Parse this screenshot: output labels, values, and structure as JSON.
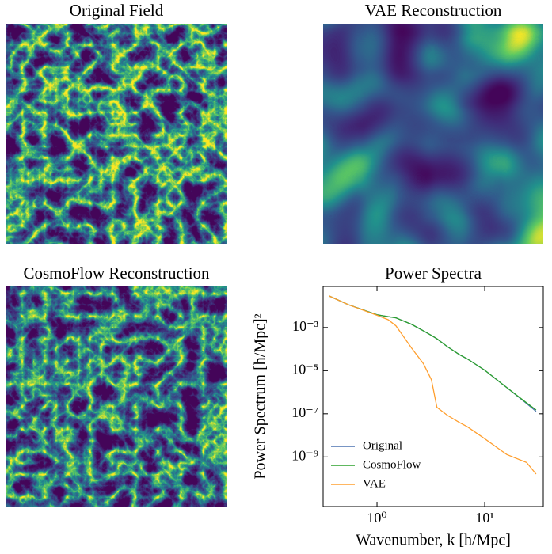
{
  "chart_data": [
    {
      "type": "image",
      "title": "Original Field",
      "style": "filaments"
    },
    {
      "type": "image",
      "title": "VAE Reconstruction",
      "style": "smooth"
    },
    {
      "type": "image",
      "title": "CosmoFlow Reconstruction",
      "style": "filaments"
    },
    {
      "type": "line",
      "title": "Power Spectra",
      "x_label": "Wavenumber, k [h/Mpc]",
      "y_label": "Power Spectrum [h/Mpc]²",
      "x_scale": "log",
      "y_scale": "log",
      "x": [
        0.36,
        0.54,
        1,
        1.27,
        1.5,
        2.1,
        2.7,
        3.2,
        3.6,
        4.5,
        5.8,
        6.9,
        10,
        16,
        24.5,
        30
      ],
      "series": [
        {
          "name": "Original",
          "color": "#4c72b0",
          "values": [
            0.029,
            0.0115,
            0.0039,
            0.0032,
            0.0028,
            0.0014,
            0.0007,
            0.00043,
            0.0003,
            0.00013,
            5.6e-05,
            3.5e-05,
            1.05e-05,
            1.65e-06,
            3e-07,
            1.3e-07
          ]
        },
        {
          "name": "CosmoFlow",
          "color": "#2ca02c",
          "values": [
            0.029,
            0.0115,
            0.0039,
            0.0032,
            0.0028,
            0.0014,
            0.0007,
            0.00043,
            0.0003,
            0.00013,
            5.6e-05,
            3.5e-05,
            1.05e-05,
            1.65e-06,
            3.2e-07,
            1.5e-07
          ]
        },
        {
          "name": "VAE",
          "color": "#ff9f2f",
          "values": [
            0.029,
            0.0115,
            0.0037,
            0.0023,
            0.0012,
            0.00011,
            2.1e-05,
            3.8e-06,
            2e-07,
            8.5e-08,
            4e-08,
            2.5e-08,
            7e-09,
            1.3e-09,
            5.5e-10,
            1.6e-10
          ]
        }
      ],
      "xlim": [
        0.316,
        35
      ],
      "ylim": [
        5e-12,
        0.08
      ],
      "xticks": [
        {
          "value": 1,
          "label": "10⁰"
        },
        {
          "value": 10,
          "label": "10¹"
        }
      ],
      "yticks": [
        {
          "value": 0.001,
          "label": "10⁻³"
        },
        {
          "value": 1e-05,
          "label": "10⁻⁵"
        },
        {
          "value": 1e-07,
          "label": "10⁻⁷"
        },
        {
          "value": 1e-09,
          "label": "10⁻⁹"
        }
      ],
      "legend": "lower left"
    }
  ]
}
